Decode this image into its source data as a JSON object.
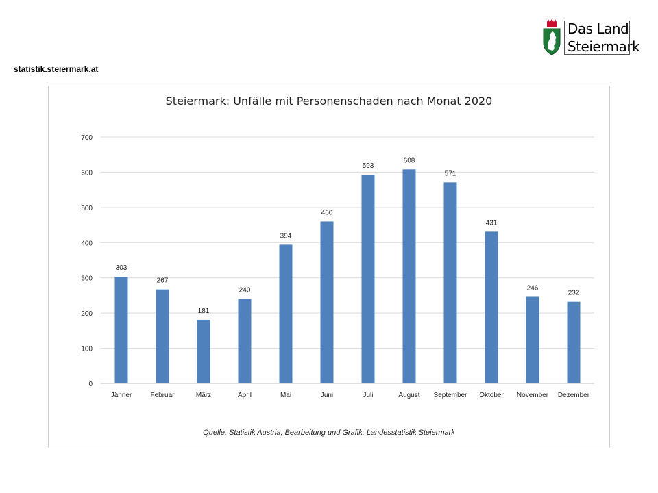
{
  "header": {
    "site_url": "statistik.steiermark.at",
    "logo": {
      "line1": "Das Land",
      "line2": "Steiermark",
      "crest_icon": "styrian-panther-crest-icon"
    }
  },
  "colors": {
    "bar": "#4f81bd",
    "grid": "#d9d9d9",
    "crest_green": "#1f7a3a"
  },
  "chart_data": {
    "type": "bar",
    "title": "Steiermark: Unfälle mit Personenschaden nach Monat 2020",
    "categories": [
      "Jänner",
      "Februar",
      "März",
      "April",
      "Mai",
      "Juni",
      "Juli",
      "August",
      "September",
      "Oktober",
      "November",
      "Dezember"
    ],
    "values": [
      303,
      267,
      181,
      240,
      394,
      460,
      593,
      608,
      571,
      431,
      246,
      232
    ],
    "ylim": [
      0,
      700
    ],
    "yticks": [
      0,
      100,
      200,
      300,
      400,
      500,
      600,
      700
    ],
    "grid": true,
    "data_labels": true,
    "xlabel": "",
    "ylabel": ""
  },
  "footer": {
    "source": "Quelle: Statistik Austria; Bearbeitung und Grafik: Landesstatistik Steiermark"
  }
}
